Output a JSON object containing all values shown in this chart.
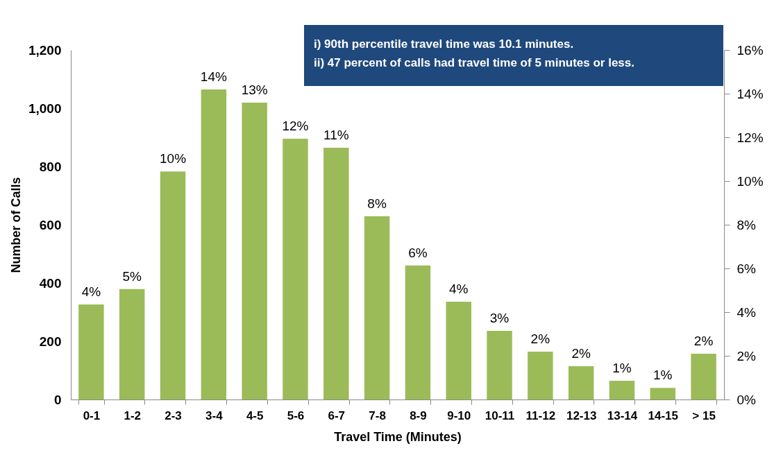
{
  "chart_data": {
    "type": "bar",
    "xlabel": "Travel Time (Minutes)",
    "ylabel": "Number of Calls",
    "categories": [
      "0-1",
      "1-2",
      "2-3",
      "3-4",
      "4-5",
      "5-6",
      "6-7",
      "7-8",
      "8-9",
      "9-10",
      "10-11",
      "11-12",
      "12-13",
      "13-14",
      "14-15",
      "> 15"
    ],
    "values": [
      326,
      379,
      783,
      1064,
      1019,
      895,
      864,
      629,
      460,
      336,
      236,
      164,
      114,
      64,
      40,
      157
    ],
    "color": "#9bbb59",
    "ylim": [
      0,
      1200
    ],
    "yticks": [
      {
        "value": 0,
        "label": "0"
      },
      {
        "value": 200,
        "label": "200"
      },
      {
        "value": 400,
        "label": "400"
      },
      {
        "value": 600,
        "label": "600"
      },
      {
        "value": 800,
        "label": "800"
      },
      {
        "value": 1000,
        "label": "1,000"
      },
      {
        "value": 1200,
        "label": "1,200"
      }
    ],
    "y2lim": [
      0,
      16
    ],
    "y2ticks": [
      {
        "value": 0,
        "label": "0%"
      },
      {
        "value": 2,
        "label": "2%"
      },
      {
        "value": 4,
        "label": "4%"
      },
      {
        "value": 6,
        "label": "6%"
      },
      {
        "value": 8,
        "label": "8%"
      },
      {
        "value": 10,
        "label": "10%"
      },
      {
        "value": 12,
        "label": "12%"
      },
      {
        "value": 14,
        "label": "14%"
      },
      {
        "value": 16,
        "label": "16%"
      }
    ],
    "annotations": [
      "i) 90th percentile travel time was 10.1 minutes.",
      "ii) 47 percent of calls had travel time of 5 minutes or less.",
      {
        "text": "4%",
        "x": "0-1",
        "y": 326
      },
      {
        "text": "5%",
        "x": "1-2",
        "y": 379
      },
      {
        "text": "10%",
        "x": "2-3",
        "y": 783
      },
      {
        "text": "14%",
        "x": "3-4",
        "y": 1064
      },
      {
        "text": "13%",
        "x": "4-5",
        "y": 1019
      },
      {
        "text": "12%",
        "x": "5-6",
        "y": 895
      },
      {
        "text": "11%",
        "x": "6-7",
        "y": 864
      },
      {
        "text": "8%",
        "x": "7-8",
        "y": 629
      },
      {
        "text": "6%",
        "x": "8-9",
        "y": 460
      },
      {
        "text": "4%",
        "x": "9-10",
        "y": 336
      },
      {
        "text": "3%",
        "x": "10-11",
        "y": 236
      },
      {
        "text": "2%",
        "x": "11-12",
        "y": 164
      },
      {
        "text": "2%",
        "x": "12-13",
        "y": 114
      },
      {
        "text": "1%",
        "x": "13-14",
        "y": 64
      },
      {
        "text": "1%",
        "x": "14-15",
        "y": 40
      },
      {
        "text": "2%",
        "x": "> 15",
        "y": 157
      }
    ],
    "grid": false
  }
}
